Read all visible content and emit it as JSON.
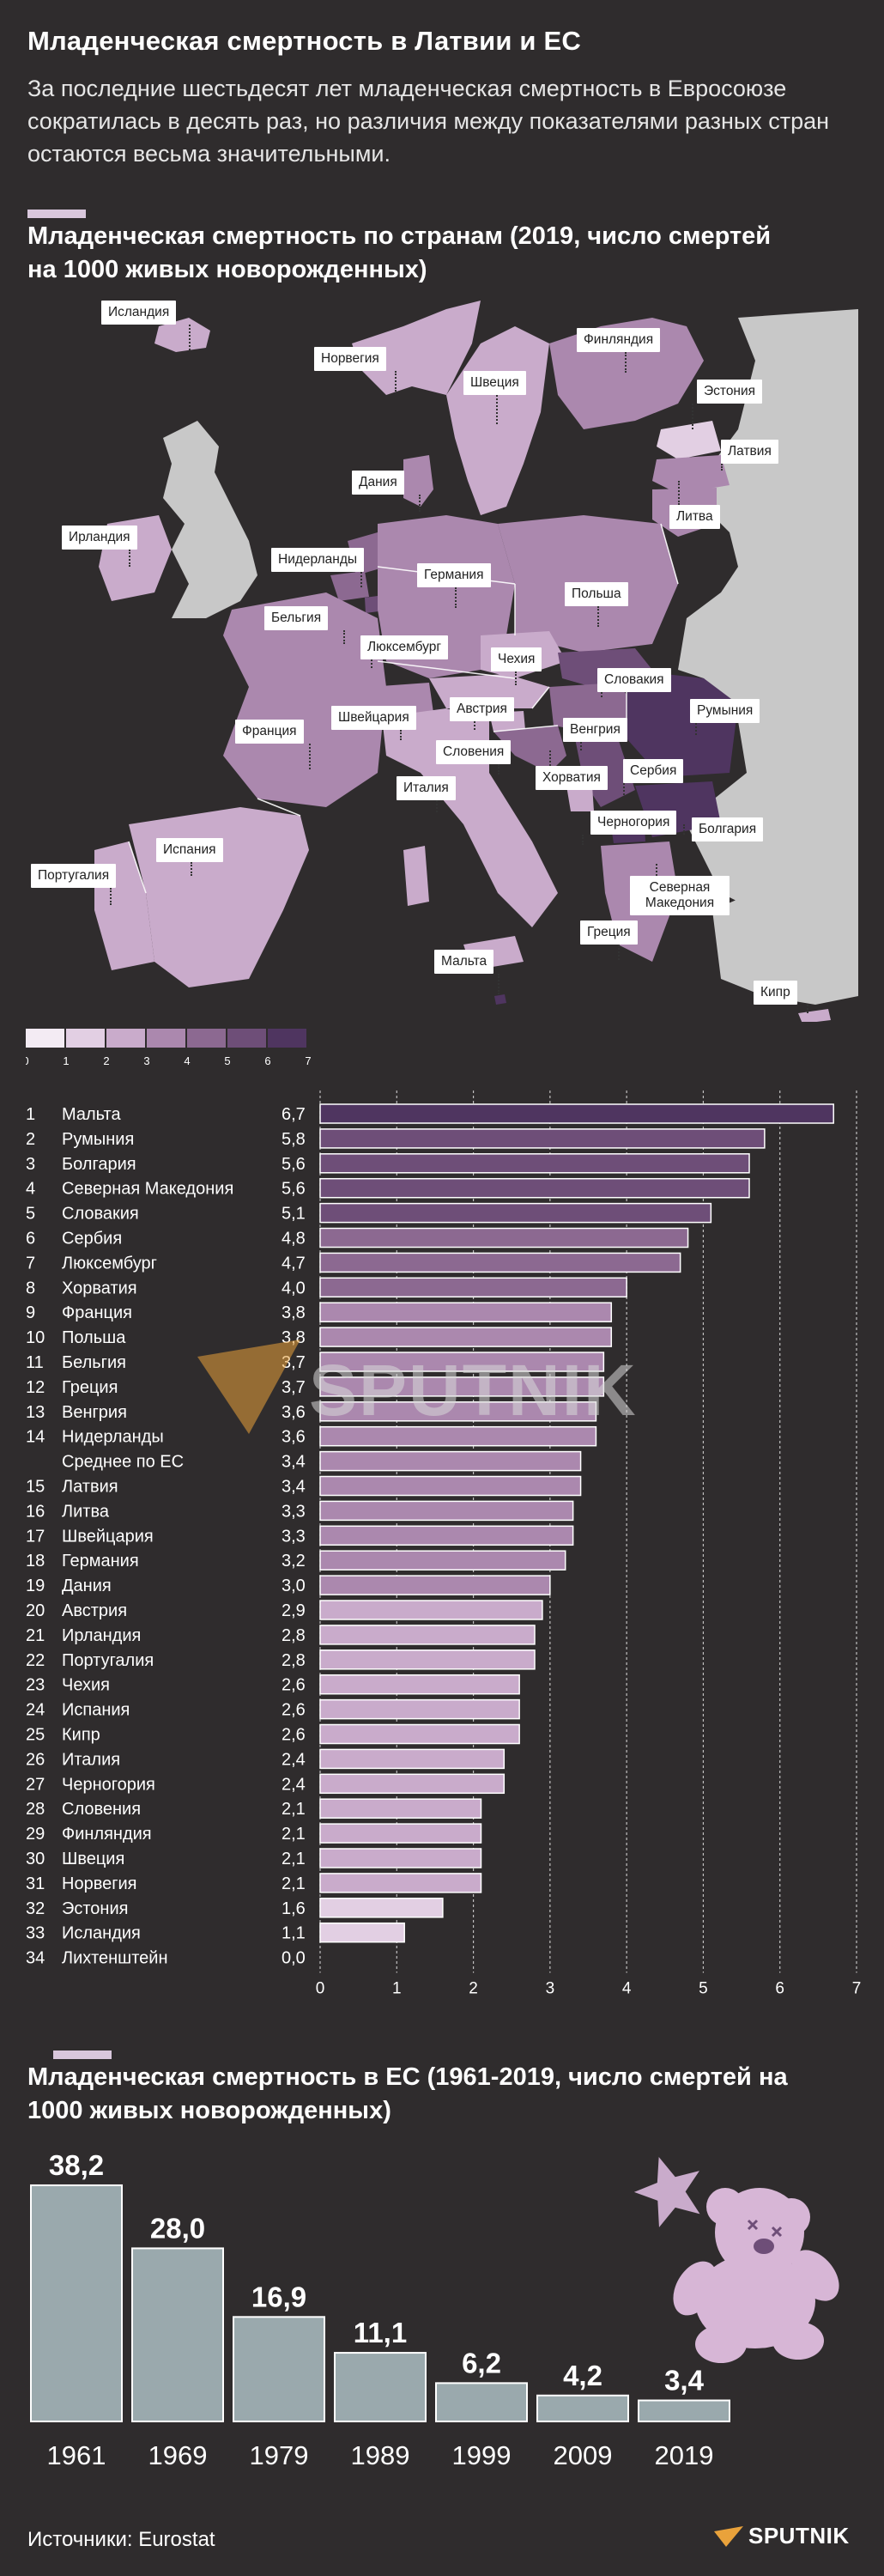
{
  "header": {
    "title": "Младенческая смертность в Латвии и ЕС",
    "subtitle": "За последние шестьдесят лет младенческая смертность в Евросоюзе сократилась в десять раз, но различия между показателями разных стран остаются весьма значительными."
  },
  "colors": {
    "background": "#2f2c2d",
    "scale": [
      "#f3ebf3",
      "#e2cfe3",
      "#c9abcb",
      "#ab88ae",
      "#8c6991",
      "#6e4e78",
      "#4f3560"
    ],
    "nodata": "#c8c8c8",
    "hist_bar": "#9aa9ad"
  },
  "map": {
    "title": "Младенческая смертность по странам (2019, число смертей на 1000 живых новорожденных)",
    "labels": {
      "iceland": "Исландия",
      "norway": "Норвегия",
      "sweden": "Швеция",
      "finland": "Финляндия",
      "estonia": "Эстония",
      "latvia": "Латвия",
      "lithuania": "Литва",
      "denmark": "Дания",
      "ireland": "Ирландия",
      "netherlands": "Нидерланды",
      "germany": "Германия",
      "poland": "Польша",
      "belgium": "Бельгия",
      "luxembourg": "Люксембург",
      "czechia": "Чехия",
      "slovakia": "Словакия",
      "austria": "Австрия",
      "switzerland": "Швейцария",
      "france": "Франция",
      "hungary": "Венгрия",
      "romania": "Румыния",
      "slovenia": "Словения",
      "croatia": "Хорватия",
      "serbia": "Сербия",
      "italy": "Италия",
      "montenegro": "Черногория",
      "bulgaria": "Болгария",
      "portugal": "Португалия",
      "spain": "Испания",
      "north_macedonia": "Северная Македония",
      "greece": "Греция",
      "malta": "Мальта",
      "cyprus": "Кипр"
    },
    "legend": {
      "ticks": [
        "0",
        "1",
        "2",
        "3",
        "4",
        "5",
        "6",
        "7"
      ]
    }
  },
  "chart_data": [
    {
      "type": "bar",
      "orientation": "horizontal",
      "ranks": [
        "1",
        "2",
        "3",
        "4",
        "5",
        "6",
        "7",
        "8",
        "9",
        "10",
        "11",
        "12",
        "13",
        "14",
        "",
        "15",
        "16",
        "17",
        "18",
        "19",
        "20",
        "21",
        "22",
        "23",
        "24",
        "25",
        "26",
        "27",
        "28",
        "29",
        "30",
        "31",
        "32",
        "33",
        "34"
      ],
      "categories": [
        "Мальта",
        "Румыния",
        "Болгария",
        "Северная Македония",
        "Словакия",
        "Сербия",
        "Люксембург",
        "Хорватия",
        "Франция",
        "Польша",
        "Бельгия",
        "Греция",
        "Венгрия",
        "Нидерланды",
        "Среднее по ЕС",
        "Латвия",
        "Литва",
        "Швейцария",
        "Германия",
        "Дания",
        "Австрия",
        "Ирландия",
        "Португалия",
        "Чехия",
        "Испания",
        "Кипр",
        "Италия",
        "Черногория",
        "Словения",
        "Финляндия",
        "Швеция",
        "Норвегия",
        "Эстония",
        "Исландия",
        "Лихтенштейн"
      ],
      "values": [
        6.7,
        5.8,
        5.6,
        5.6,
        5.1,
        4.8,
        4.7,
        4.0,
        3.8,
        3.8,
        3.7,
        3.7,
        3.6,
        3.6,
        3.4,
        3.4,
        3.3,
        3.3,
        3.2,
        3.0,
        2.9,
        2.8,
        2.8,
        2.6,
        2.6,
        2.6,
        2.4,
        2.4,
        2.1,
        2.1,
        2.1,
        2.1,
        1.6,
        1.1,
        0.0
      ],
      "value_labels": [
        "6,7",
        "5,8",
        "5,6",
        "5,6",
        "5,1",
        "4,8",
        "4,7",
        "4,0",
        "3,8",
        "3,8",
        "3,7",
        "3,7",
        "3,6",
        "3,6",
        "3,4",
        "3,4",
        "3,3",
        "3,3",
        "3,2",
        "3,0",
        "2,9",
        "2,8",
        "2,8",
        "2,6",
        "2,6",
        "2,6",
        "2,4",
        "2,4",
        "2,1",
        "2,1",
        "2,1",
        "2,1",
        "1,6",
        "1,1",
        "0,0"
      ],
      "xlim": [
        0,
        7
      ],
      "x_ticks": [
        "0",
        "1",
        "2",
        "3",
        "4",
        "5",
        "6",
        "7"
      ],
      "grid": true
    },
    {
      "type": "bar",
      "title": "Младенческая смертность в ЕС (1961-2019, число смертей на 1000 живых новорожденных)",
      "categories": [
        "1961",
        "1969",
        "1979",
        "1989",
        "1999",
        "2009",
        "2019"
      ],
      "values": [
        38.2,
        28.0,
        16.9,
        11.1,
        6.2,
        4.2,
        3.4
      ],
      "value_labels": [
        "38,2",
        "28,0",
        "16,9",
        "11,1",
        "6,2",
        "4,2",
        "3,4"
      ],
      "ylim": [
        0,
        40
      ]
    }
  ],
  "footer": {
    "sources": "Источники: Eurostat",
    "brand": "SPUTNIK",
    "watermark": "SPUTNIK"
  }
}
